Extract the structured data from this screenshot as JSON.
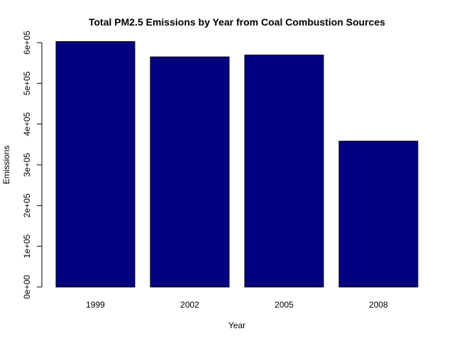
{
  "chart_data": {
    "type": "bar",
    "title": "Total PM2.5 Emissions by Year from Coal Combustion Sources",
    "xlabel": "Year",
    "ylabel": "Emissions",
    "categories": [
      "1999",
      "2002",
      "2005",
      "2008"
    ],
    "values": [
      602624,
      564940,
      569655,
      358084
    ],
    "ylim": [
      0,
      600000
    ],
    "yticks": [
      0,
      100000,
      200000,
      300000,
      400000,
      500000,
      600000
    ],
    "ytick_labels": [
      "0e+00",
      "1e+05",
      "2e+05",
      "3e+05",
      "4e+05",
      "5e+05",
      "6e+05"
    ],
    "bar_color": "#000080",
    "grid": false,
    "legend": "none"
  }
}
